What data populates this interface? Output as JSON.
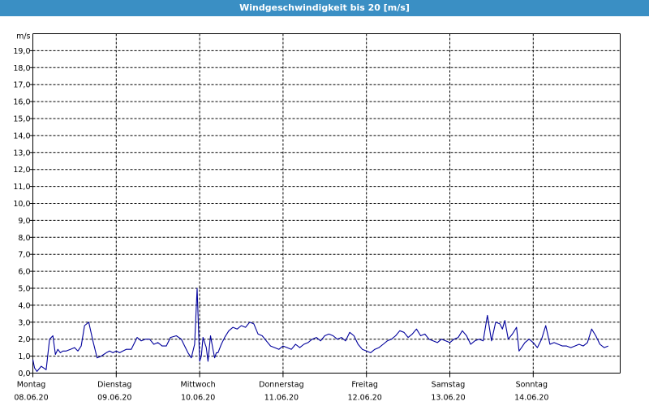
{
  "window": {
    "title": "Windgeschwindigkeit bis 20 [m/s]"
  },
  "chart_data": {
    "type": "line",
    "title": "Windgeschwindigkeit bis 20 [m/s]",
    "ylabel": "m/s",
    "ylim": [
      0,
      20
    ],
    "ytick_labels": [
      "0,0",
      "1,0",
      "2,0",
      "3,0",
      "4,0",
      "5,0",
      "6,0",
      "7,0",
      "8,0",
      "9,0",
      "10,0",
      "11,0",
      "12,0",
      "13,0",
      "14,0",
      "15,0",
      "16,0",
      "17,0",
      "18,0",
      "19,0"
    ],
    "xlim": [
      0,
      7.0
    ],
    "x_unit": "days since Montag 08.06.20 00:00",
    "days": [
      {
        "name": "Montag",
        "date": "08.06.20"
      },
      {
        "name": "Dienstag",
        "date": "09.06.20"
      },
      {
        "name": "Mittwoch",
        "date": "10.06.20"
      },
      {
        "name": "Donnerstag",
        "date": "11.06.20"
      },
      {
        "name": "Freitag",
        "date": "12.06.20"
      },
      {
        "name": "Samstag",
        "date": "13.06.20"
      },
      {
        "name": "Sonntag",
        "date": "14.06.20"
      }
    ],
    "grid": true,
    "line_color": "#00009c",
    "series": [
      {
        "name": "Windgeschwindigkeit",
        "x": [
          0.0,
          0.02,
          0.05,
          0.1,
          0.16,
          0.2,
          0.24,
          0.27,
          0.3,
          0.33,
          0.36,
          0.4,
          0.45,
          0.5,
          0.54,
          0.58,
          0.62,
          0.67,
          0.72,
          0.77,
          0.82,
          0.85,
          0.88,
          0.92,
          0.96,
          1.0,
          1.04,
          1.08,
          1.12,
          1.18,
          1.25,
          1.3,
          1.35,
          1.4,
          1.45,
          1.5,
          1.55,
          1.6,
          1.65,
          1.72,
          1.78,
          1.82,
          1.86,
          1.9,
          1.94,
          1.97,
          2.0,
          2.02,
          2.04,
          2.06,
          2.08,
          2.1,
          2.13,
          2.16,
          2.18,
          2.2,
          2.22,
          2.26,
          2.3,
          2.35,
          2.4,
          2.45,
          2.5,
          2.55,
          2.6,
          2.65,
          2.7,
          2.75,
          2.8,
          2.85,
          2.9,
          2.95,
          3.0,
          3.05,
          3.1,
          3.15,
          3.2,
          3.25,
          3.3,
          3.35,
          3.4,
          3.45,
          3.5,
          3.55,
          3.6,
          3.65,
          3.7,
          3.75,
          3.8,
          3.85,
          3.9,
          3.95,
          4.0,
          4.05,
          4.1,
          4.15,
          4.2,
          4.25,
          4.3,
          4.35,
          4.4,
          4.45,
          4.5,
          4.55,
          4.6,
          4.65,
          4.7,
          4.75,
          4.8,
          4.85,
          4.9,
          4.95,
          5.0,
          5.05,
          5.1,
          5.15,
          5.2,
          5.25,
          5.3,
          5.35,
          5.4,
          5.45,
          5.5,
          5.55,
          5.6,
          5.63,
          5.66,
          5.7,
          5.75,
          5.8,
          5.83,
          5.86,
          5.9,
          5.95,
          6.0,
          6.05,
          6.1,
          6.15,
          6.2,
          6.25,
          6.3,
          6.35,
          6.4,
          6.45,
          6.5,
          6.55,
          6.6,
          6.65,
          6.7,
          6.75,
          6.8,
          6.85,
          6.9
        ],
        "values": [
          0.8,
          0.3,
          0.1,
          0.4,
          0.2,
          2.0,
          2.2,
          1.1,
          1.4,
          1.2,
          1.3,
          1.3,
          1.4,
          1.5,
          1.3,
          1.6,
          2.8,
          3.0,
          1.9,
          0.9,
          1.0,
          1.1,
          1.2,
          1.3,
          1.2,
          1.3,
          1.2,
          1.3,
          1.4,
          1.4,
          2.1,
          1.9,
          2.0,
          2.0,
          1.7,
          1.8,
          1.6,
          1.6,
          2.1,
          2.2,
          2.0,
          1.6,
          1.2,
          0.9,
          1.7,
          5.0,
          0.7,
          1.0,
          2.1,
          1.8,
          1.5,
          0.7,
          2.2,
          1.4,
          0.9,
          1.2,
          1.2,
          1.7,
          2.1,
          2.5,
          2.7,
          2.6,
          2.8,
          2.7,
          3.0,
          2.9,
          2.3,
          2.2,
          1.9,
          1.6,
          1.5,
          1.4,
          1.6,
          1.5,
          1.4,
          1.7,
          1.5,
          1.7,
          1.8,
          2.0,
          2.1,
          1.9,
          2.2,
          2.3,
          2.2,
          2.0,
          2.1,
          1.9,
          2.4,
          2.2,
          1.7,
          1.4,
          1.3,
          1.2,
          1.4,
          1.5,
          1.7,
          1.9,
          2.0,
          2.2,
          2.5,
          2.4,
          2.1,
          2.3,
          2.6,
          2.2,
          2.3,
          2.0,
          1.9,
          1.8,
          2.0,
          1.9,
          1.8,
          2.0,
          2.1,
          2.5,
          2.2,
          1.7,
          1.9,
          2.0,
          1.9,
          3.4,
          1.9,
          3.0,
          2.9,
          2.6,
          3.1,
          2.0,
          2.3,
          2.7,
          1.3,
          1.5,
          1.8,
          2.0,
          1.8,
          1.5,
          2.0,
          2.8,
          1.7,
          1.8,
          1.7,
          1.6,
          1.6,
          1.5,
          1.6,
          1.7,
          1.6,
          1.8,
          2.6,
          2.2,
          1.7,
          1.5,
          1.6
        ]
      }
    ]
  }
}
